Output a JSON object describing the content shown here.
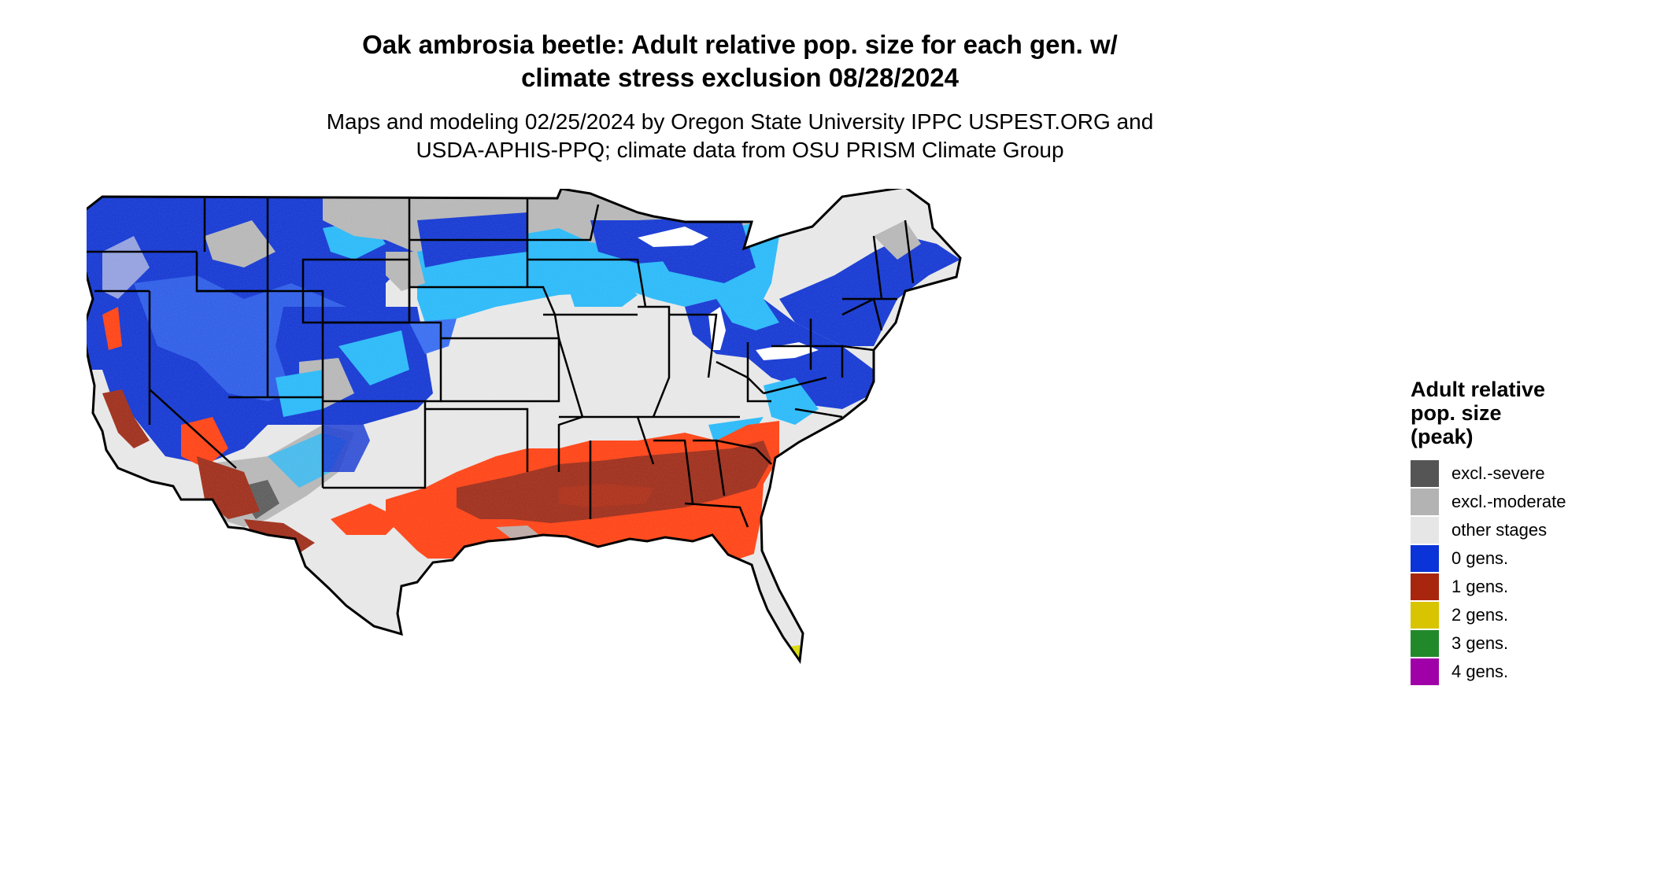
{
  "title_line1": "Oak ambrosia beetle: Adult relative pop. size for each gen. w/",
  "title_line2": "climate stress exclusion 08/28/2024",
  "subtitle_line1": "Maps and modeling 02/25/2024 by Oregon State University IPPC USPEST.ORG and",
  "subtitle_line2": "USDA-APHIS-PPQ; climate data from OSU PRISM Climate Group",
  "legend": {
    "title_line1": "Adult relative",
    "title_line2": "pop. size",
    "title_line3": "(peak)",
    "items": [
      {
        "label": "excl.-severe",
        "color": "#555555"
      },
      {
        "label": "excl.-moderate",
        "color": "#b3b3b3"
      },
      {
        "label": "other stages",
        "color": "#e6e6e6"
      },
      {
        "label": "0 gens.",
        "color": "#0a33d8"
      },
      {
        "label": "1 gens.",
        "color": "#a8260e"
      },
      {
        "label": "2 gens.",
        "color": "#d8c400"
      },
      {
        "label": "3 gens.",
        "color": "#22892a"
      },
      {
        "label": "4 gens.",
        "color": "#a000a8"
      }
    ]
  },
  "map_colors": {
    "blue_dark": "#0a2fd0",
    "blue_mid": "#2f66f0",
    "blue_light": "#20b6f8",
    "red_dark": "#9a2410",
    "red_orange": "#ff3a0a",
    "gray_light": "#e6e6e6",
    "gray_mid": "#b3b3b3",
    "yellow": "#d8d800"
  }
}
